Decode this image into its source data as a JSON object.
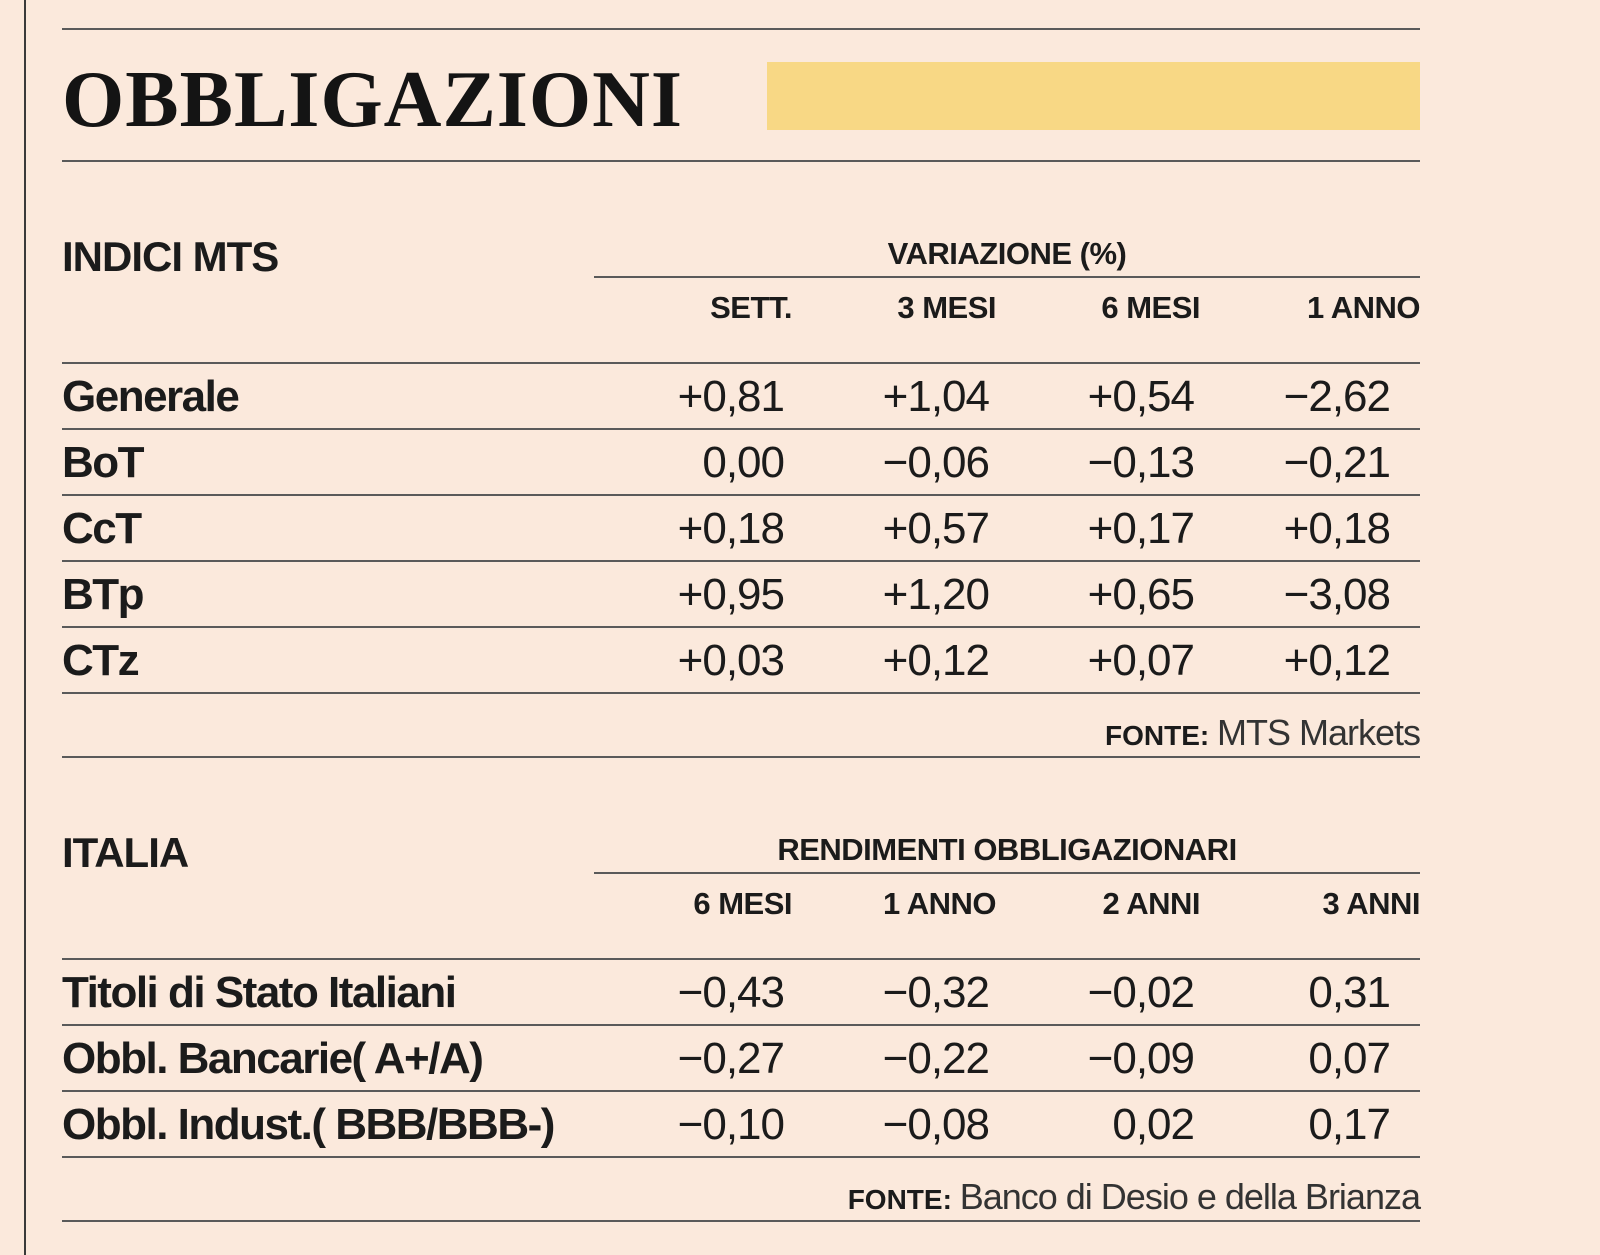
{
  "title": "OBBLIGAZIONI",
  "colors": {
    "background": "#fbe9dc",
    "title_bar": "#f8d885",
    "rules": "#5a5a5a"
  },
  "section_mts": {
    "name": "INDICI MTS",
    "group_header": "VARIAZIONE (%)",
    "columns": [
      "SETT.",
      "3 MESI",
      "6 MESI",
      "1 ANNO"
    ],
    "rows": [
      {
        "label": "Generale",
        "values": [
          "+0,81",
          "+1,04",
          "+0,54",
          "−2,62"
        ]
      },
      {
        "label": "BoT",
        "values": [
          "0,00",
          "−0,06",
          "−0,13",
          "−0,21"
        ]
      },
      {
        "label": "CcT",
        "values": [
          "+0,18",
          "+0,57",
          "+0,17",
          "+0,18"
        ]
      },
      {
        "label": "BTp",
        "values": [
          "+0,95",
          "+1,20",
          "+0,65",
          "−3,08"
        ]
      },
      {
        "label": "CTz",
        "values": [
          "+0,03",
          "+0,12",
          "+0,07",
          "+0,12"
        ]
      }
    ],
    "source_label": "FONTE:",
    "source_text": "MTS Markets"
  },
  "section_italia": {
    "name": "ITALIA",
    "group_header": "RENDIMENTI OBBLIGAZIONARI",
    "columns": [
      "6 MESI",
      "1 ANNO",
      "2 ANNI",
      "3 ANNI"
    ],
    "rows": [
      {
        "label": "Titoli di Stato Italiani",
        "values": [
          "−0,43",
          "−0,32",
          "−0,02",
          "0,31"
        ]
      },
      {
        "label": "Obbl. Bancarie( A+/A)",
        "values": [
          "−0,27",
          "−0,22",
          "−0,09",
          "0,07"
        ]
      },
      {
        "label": "Obbl. Indust.( BBB/BBB-)",
        "values": [
          "−0,10",
          "−0,08",
          "0,02",
          "0,17"
        ]
      }
    ],
    "source_label": "FONTE:",
    "source_text": "Banco di Desio e della Brianza"
  }
}
